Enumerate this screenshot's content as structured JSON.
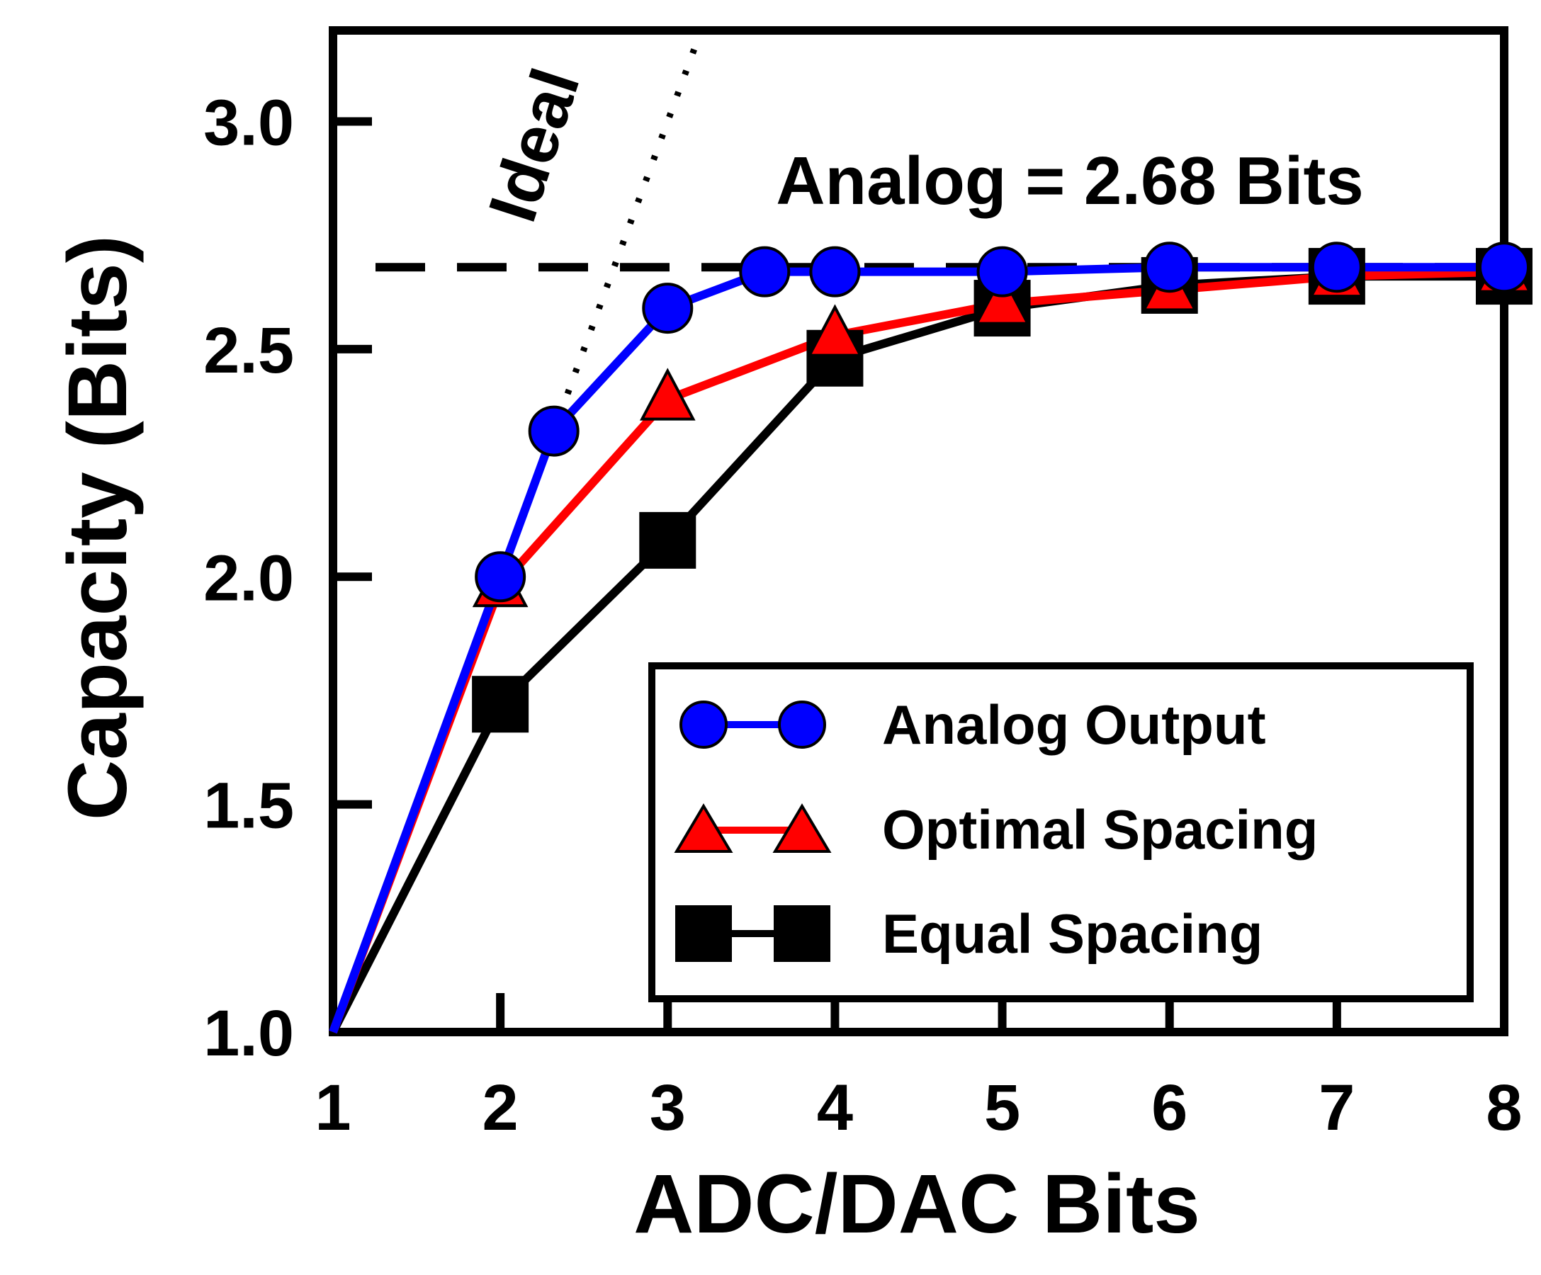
{
  "chart_data": {
    "type": "line",
    "xlabel": "ADC/DAC Bits",
    "ylabel": "Capacity (Bits)",
    "xlim": [
      1,
      8
    ],
    "ylim": [
      1.0,
      3.2
    ],
    "xticks": [
      1,
      2,
      3,
      4,
      5,
      6,
      7,
      8
    ],
    "yticks": [
      1.0,
      1.5,
      2.0,
      2.5,
      3.0
    ],
    "xtick_labels": [
      "1",
      "2",
      "3",
      "4",
      "5",
      "6",
      "7",
      "8"
    ],
    "ytick_labels": [
      "1.0",
      "1.5",
      "2.0",
      "2.5",
      "3.0"
    ],
    "grid": false,
    "legend_position": "bottom-right",
    "series": [
      {
        "name": "Analog Output",
        "color": "#0000ff",
        "marker": "circle",
        "x": [
          1,
          2,
          2.32,
          3,
          3.58,
          4,
          5,
          6,
          7,
          8
        ],
        "y": [
          1.0,
          2.0,
          2.32,
          2.59,
          2.67,
          2.67,
          2.67,
          2.68,
          2.68,
          2.68
        ]
      },
      {
        "name": "Optimal Spacing",
        "color": "#ff0000",
        "marker": "triangle",
        "x": [
          1,
          2,
          3,
          4,
          5,
          6,
          7,
          8
        ],
        "y": [
          1.0,
          1.98,
          2.39,
          2.53,
          2.6,
          2.63,
          2.66,
          2.67
        ]
      },
      {
        "name": "Equal Spacing",
        "color": "#000000",
        "marker": "square",
        "x": [
          1,
          2,
          3,
          4,
          5,
          6,
          7,
          8
        ],
        "y": [
          1.0,
          1.72,
          2.08,
          2.48,
          2.59,
          2.64,
          2.66,
          2.66
        ]
      }
    ],
    "reference_lines": [
      {
        "label": "Ideal",
        "style": "dotted",
        "x": [
          1,
          2,
          3,
          3.2
        ],
        "y": [
          1.0,
          2.0,
          3.0,
          3.2
        ]
      },
      {
        "label": "Analog = 2.68 Bits",
        "style": "dashed",
        "y": 2.68
      }
    ]
  }
}
